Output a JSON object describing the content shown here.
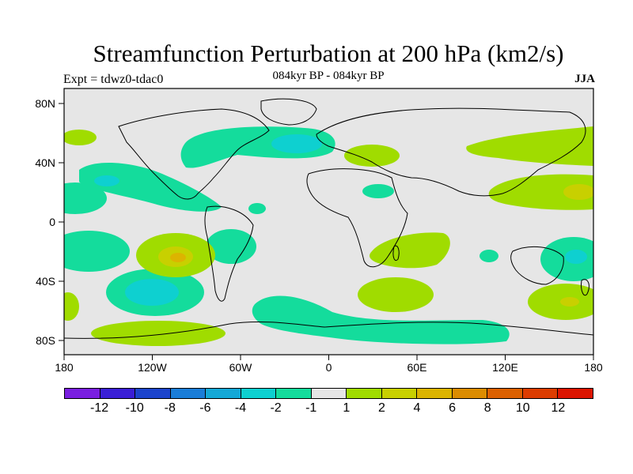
{
  "title": "Streamfunction Perturbation at 200 hPa (km2/s)",
  "subtitle": "084kyr BP - 084kyr BP",
  "left_label": "Expt = tdwz0-tdac0",
  "right_label": "JJA",
  "axes": {
    "x_ticks": [
      "180",
      "120W",
      "60W",
      "0",
      "60E",
      "120E",
      "180"
    ],
    "y_ticks": [
      "80N",
      "40N",
      "0",
      "40S",
      "80S"
    ]
  },
  "colorbar": {
    "colors": [
      "#7a1fe0",
      "#3a1fd6",
      "#1c44cc",
      "#1a7dd8",
      "#14a8d6",
      "#0ed0d0",
      "#14dc9c",
      "#e6e6e6",
      "#a0dc00",
      "#c8d000",
      "#dcb400",
      "#dc8c00",
      "#dc6000",
      "#dc3c00",
      "#dc1400"
    ],
    "labels": [
      "-12",
      "-10",
      "-8",
      "-6",
      "-4",
      "-2",
      "-1",
      "1",
      "2",
      "4",
      "6",
      "8",
      "10",
      "12"
    ]
  },
  "field_colors": {
    "background": "#e6e6e6",
    "neg1": "#14dc9c",
    "neg2": "#0ed0d0",
    "pos1": "#a0dc00",
    "pos2": "#c8d000",
    "pos3": "#dcb400"
  }
}
